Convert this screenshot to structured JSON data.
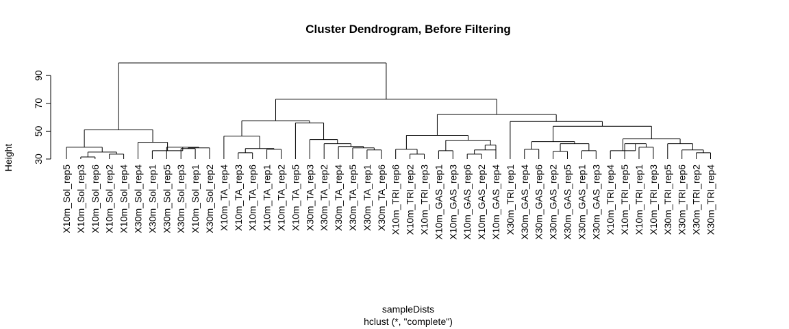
{
  "chart_data": {
    "type": "dendrogram",
    "title": "Cluster Dendrogram, Before Filtering",
    "xlabel": "sampleDists",
    "sub": "hclust (*, \"complete\")",
    "ylabel": "Height",
    "yticks": [
      30,
      50,
      70,
      90
    ],
    "ylim": [
      30,
      100
    ],
    "leaves": [
      "X10m_Sol_rep5",
      "X10m_Sol_rep3",
      "X10m_Sol_rep6",
      "X10m_Sol_rep2",
      "X10m_Sol_rep4",
      "X30m_Sol_rep4",
      "X30m_Sol_rep1",
      "X30m_Sol_rep5",
      "X30m_Sol_rep3",
      "X10m_Sol_rep1",
      "X30m_Sol_rep2",
      "X10m_TA_rep4",
      "X10m_TA_rep3",
      "X10m_TA_rep6",
      "X10m_TA_rep1",
      "X10m_TA_rep2",
      "X10m_TA_rep5",
      "X30m_TA_rep3",
      "X30m_TA_rep2",
      "X30m_TA_rep4",
      "X30m_TA_rep5",
      "X30m_TA_rep1",
      "X30m_TA_rep6",
      "X10m_TRI_rep6",
      "X10m_TRI_rep2",
      "X10m_TRI_rep3",
      "X10m_GAS_rep1",
      "X10m_GAS_rep3",
      "X10m_GAS_rep6",
      "X10m_GAS_rep2",
      "X10m_GAS_rep4",
      "X30m_TRI_rep1",
      "X30m_GAS_rep4",
      "X30m_GAS_rep6",
      "X30m_GAS_rep2",
      "X30m_GAS_rep5",
      "X30m_GAS_rep1",
      "X30m_GAS_rep3",
      "X10m_TRI_rep4",
      "X10m_TRI_rep5",
      "X10m_TRI_rep1",
      "X10m_TRI_rep3",
      "X30m_TRI_rep5",
      "X30m_TRI_rep6",
      "X30m_TRI_rep2",
      "X30m_TRI_rep4"
    ],
    "merges": [
      {
        "l": 2,
        "r": 3,
        "h": 31.5
      },
      {
        "l": 4,
        "r": 5,
        "h": 33.5
      },
      {
        "l": "m1",
        "r": "m2",
        "h": 35
      },
      {
        "l": 1,
        "r": "m3",
        "h": 38.5
      },
      {
        "l": 9,
        "r": 10,
        "h": 37.5
      },
      {
        "l": "m5",
        "r": 11,
        "h": 38
      },
      {
        "l": 8,
        "r": "m6",
        "h": 38.5
      },
      {
        "l": 7,
        "r": "m7",
        "h": 36
      },
      {
        "l": 6,
        "r": "m8",
        "h": 42
      },
      {
        "l": "m4",
        "r": "m9",
        "h": 51
      },
      {
        "l": 13,
        "r": 14,
        "h": 34.5
      },
      {
        "l": 15,
        "r": 16,
        "h": 37
      },
      {
        "l": "m11",
        "r": "m12",
        "h": 37.5
      },
      {
        "l": 12,
        "r": "m13",
        "h": 46.5
      },
      {
        "l": 22,
        "r": 23,
        "h": 36.5
      },
      {
        "l": 21,
        "r": "m15",
        "h": 38
      },
      {
        "l": 20,
        "r": "m16",
        "h": 39
      },
      {
        "l": 19,
        "r": "m17",
        "h": 41
      },
      {
        "l": 18,
        "r": "m18",
        "h": 44
      },
      {
        "l": "m19",
        "r": 17,
        "h": 56
      },
      {
        "l": "m14",
        "r": "m20",
        "h": 57.5
      },
      {
        "l": 25,
        "r": 26,
        "h": 33.5
      },
      {
        "l": 24,
        "r": "m22",
        "h": 37
      },
      {
        "l": 27,
        "r": 28,
        "h": 36
      },
      {
        "l": 29,
        "r": 30,
        "h": 33.5
      },
      {
        "l": 31,
        "r": "m25",
        "h": 36.5
      },
      {
        "l": "m26",
        "r": 31,
        "h": 40
      },
      {
        "l": "m24",
        "r": "m27",
        "h": 43.5
      },
      {
        "l": "m23",
        "r": "m28",
        "h": 47
      },
      {
        "l": 33,
        "r": 34,
        "h": 37
      },
      {
        "l": 35,
        "r": 36,
        "h": 35.5
      },
      {
        "l": 37,
        "r": 38,
        "h": 36
      },
      {
        "l": "m31",
        "r": "m32",
        "h": 41
      },
      {
        "l": "m30",
        "r": "m33",
        "h": 42.5
      },
      {
        "l": 41,
        "r": 42,
        "h": 38.5
      },
      {
        "l": 40,
        "r": "m35",
        "h": 41
      },
      {
        "l": 39,
        "r": "m36",
        "h": 36
      },
      {
        "l": 45,
        "r": 46,
        "h": 34.5
      },
      {
        "l": 44,
        "r": "m38",
        "h": 36.5
      },
      {
        "l": 43,
        "r": "m39",
        "h": 41
      },
      {
        "l": "m37",
        "r": "m40",
        "h": 44.5
      },
      {
        "l": "m34",
        "r": "m41",
        "h": 53.5
      },
      {
        "l": 32,
        "r": "m42",
        "h": 57
      },
      {
        "l": "m29",
        "r": "m43",
        "h": 62
      },
      {
        "l": "m21",
        "r": "m44",
        "h": 73
      },
      {
        "l": "m10",
        "r": "m45",
        "h": 99
      }
    ]
  }
}
